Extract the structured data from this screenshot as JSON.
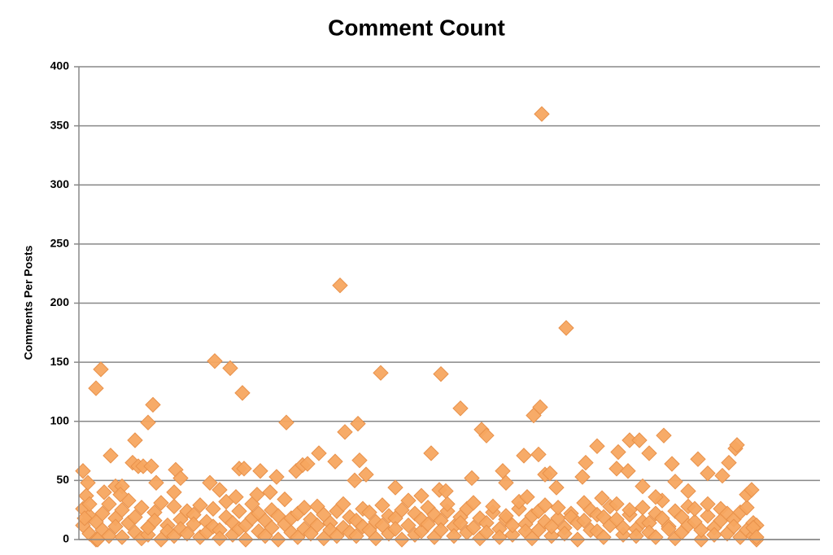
{
  "chart_data": {
    "type": "scatter",
    "title": "Comment Count",
    "y_label": "Comments Per Posts",
    "ylim": [
      0,
      400
    ],
    "yticks": [
      0,
      50,
      100,
      150,
      200,
      250,
      300,
      350,
      400
    ],
    "xlim": [
      0,
      911
    ],
    "grid": true,
    "series": [
      {
        "color": "#f7a660",
        "x": [
          5,
          5,
          13,
          13,
          21,
          21,
          29,
          29,
          37,
          37,
          45,
          45,
          53,
          53,
          61,
          61,
          69,
          69,
          77,
          77,
          85,
          85,
          93,
          93,
          101,
          101,
          109,
          109,
          117,
          117,
          125,
          125,
          133,
          133,
          141,
          141,
          149,
          149,
          157,
          157,
          165,
          165,
          173,
          173,
          181,
          181,
          189,
          189,
          197,
          197,
          205,
          205,
          213,
          213,
          221,
          221,
          229,
          229,
          237,
          237,
          245,
          245,
          253,
          253,
          261,
          261,
          269,
          269,
          277,
          277,
          285,
          285,
          293,
          293,
          301,
          301,
          309,
          309,
          317,
          317,
          325,
          325,
          333,
          333,
          341,
          341,
          349,
          349,
          357,
          357,
          365,
          365,
          373,
          373,
          381,
          381,
          389,
          389,
          397,
          397,
          405,
          405,
          413,
          413,
          421,
          421,
          429,
          429,
          437,
          437,
          445,
          445,
          453,
          453,
          461,
          461,
          469,
          469,
          477,
          477,
          485,
          485,
          493,
          493,
          501,
          501,
          509,
          509,
          517,
          517,
          525,
          525,
          533,
          533,
          541,
          541,
          549,
          549,
          557,
          557,
          565,
          565,
          573,
          573,
          581,
          581,
          589,
          589,
          597,
          597,
          605,
          605,
          613,
          613,
          621,
          621,
          629,
          629,
          637,
          637,
          645,
          645,
          653,
          653,
          661,
          661,
          669,
          669,
          677,
          677,
          685,
          685,
          693,
          693,
          701,
          701,
          709,
          709,
          717,
          717,
          725,
          725,
          733,
          733,
          741,
          741,
          749,
          749,
          757,
          757,
          765,
          765,
          773,
          773,
          781,
          781,
          789,
          789,
          797,
          797,
          805,
          805,
          813,
          813,
          821,
          821,
          829,
          829,
          833,
          833,
          5,
          11,
          9,
          7,
          13,
          21,
          27,
          23,
          31,
          39,
          45,
          53,
          51,
          69,
          66,
          73,
          79,
          85,
          89,
          91,
          95,
          85,
          119,
          125,
          117,
          161,
          167,
          173,
          186,
          193,
          197,
          201,
          203,
          223,
          219,
          235,
          243,
          255,
          267,
          275,
          281,
          295,
          315,
          321,
          327,
          339,
          343,
          345,
          353,
          371,
          389,
          421,
          433,
          443,
          445,
          451,
          469,
          483,
          495,
          501,
          521,
          525,
          547,
          551,
          559,
          567,
          565,
          569,
          573,
          579,
          587,
          599,
          619,
          623,
          637,
          643,
          661,
          663,
          675,
          677,
          689,
          693,
          701,
          709,
          719,
          729,
          733,
          749,
          761,
          773,
          791,
          799,
          807,
          809,
          821,
          827,
          829,
          833
        ],
        "values": [
          12,
          26,
          5,
          20,
          0,
          15,
          22,
          8,
          3,
          30,
          18,
          11,
          2,
          25,
          14,
          33,
          6,
          19,
          1,
          27,
          10,
          4,
          23,
          16,
          0,
          31,
          12,
          7,
          28,
          3,
          17,
          9,
          5,
          24,
          21,
          13,
          2,
          29,
          15,
          6,
          26,
          11,
          8,
          1,
          19,
          32,
          4,
          14,
          24,
          9,
          12,
          0,
          30,
          18,
          7,
          22,
          16,
          3,
          25,
          10,
          0,
          20,
          13,
          34,
          6,
          18,
          22,
          2,
          9,
          27,
          17,
          5,
          28,
          12,
          1,
          21,
          14,
          8,
          24,
          3,
          10,
          30,
          19,
          6,
          3,
          16,
          26,
          11,
          8,
          23,
          15,
          1,
          29,
          12,
          5,
          20,
          18,
          9,
          0,
          25,
          12,
          33,
          22,
          4,
          7,
          17,
          27,
          13,
          2,
          21,
          16,
          8,
          24,
          30,
          11,
          3,
          19,
          14,
          6,
          26,
          31,
          10,
          1,
          18,
          14,
          6,
          23,
          28,
          9,
          2,
          17,
          20,
          4,
          12,
          26,
          32,
          13,
          7,
          20,
          1,
          8,
          24,
          29,
          15,
          3,
          11,
          18,
          27,
          10,
          5,
          22,
          19,
          0,
          14,
          16,
          31,
          25,
          8,
          7,
          21,
          19,
          2,
          12,
          28,
          30,
          17,
          4,
          10,
          21,
          25,
          9,
          3,
          27,
          15,
          14,
          6,
          2,
          22,
          18,
          33,
          11,
          9,
          24,
          1,
          6,
          19,
          28,
          12,
          15,
          26,
          0,
          8,
          20,
          30,
          10,
          4,
          26,
          16,
          5,
          22,
          17,
          11,
          23,
          2,
          8,
          27,
          3,
          14,
          12,
          0,
          58,
          48,
          37,
          18,
          30,
          128,
          144,
          0,
          40,
          71,
          45,
          45,
          38,
          84,
          65,
          62,
          62,
          99,
          62,
          114,
          48,
          10,
          59,
          52,
          40,
          48,
          151,
          42,
          145,
          36,
          60,
          124,
          60,
          58,
          38,
          40,
          53,
          99,
          58,
          63,
          64,
          73,
          66,
          215,
          91,
          50,
          98,
          67,
          55,
          141,
          44,
          37,
          73,
          42,
          140,
          41,
          111,
          52,
          93,
          88,
          58,
          48,
          71,
          36,
          105,
          112,
          72,
          360,
          55,
          56,
          44,
          179,
          53,
          65,
          79,
          35,
          60,
          74,
          58,
          84,
          84,
          45,
          73,
          36,
          88,
          64,
          49,
          41,
          68,
          56,
          54,
          65,
          77,
          80,
          38,
          42,
          10,
          2
        ]
      }
    ]
  }
}
